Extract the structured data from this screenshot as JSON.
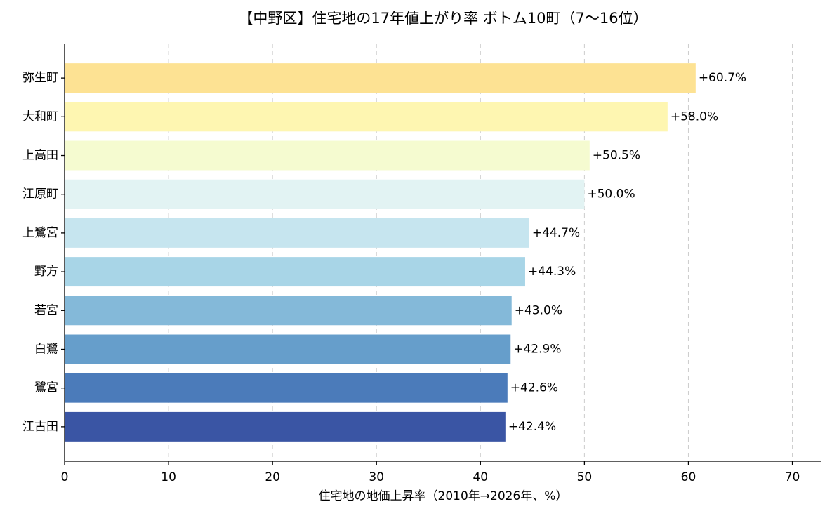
{
  "chart_data": {
    "type": "barh",
    "title": "【中野区】住宅地の17年値上がり率 ボトム10町（7〜16位）",
    "x_label": "住宅地の地価上昇率（2010年→2026年、%）",
    "categories": [
      "弥生町",
      "大和町",
      "上高田",
      "江原町",
      "上鷺宮",
      "野方",
      "若宮",
      "白鷺",
      "鷺宮",
      "江古田"
    ],
    "values": [
      60.7,
      58.0,
      50.5,
      50.0,
      44.7,
      44.3,
      43.0,
      42.9,
      42.6,
      42.4
    ],
    "value_labels": [
      "+60.7%",
      "+58.0%",
      "+50.5%",
      "+50.0%",
      "+44.7%",
      "+44.3%",
      "+43.0%",
      "+42.9%",
      "+42.6%",
      "+42.4%"
    ],
    "colors": [
      "#fde293",
      "#fef6b1",
      "#f5fbd0",
      "#e2f3f3",
      "#c6e5ef",
      "#a8d5e7",
      "#84b9d9",
      "#669ecb",
      "#4b7bba",
      "#3a55a4"
    ],
    "xlim": [
      0,
      72.8
    ],
    "xticks": [
      0,
      10,
      20,
      30,
      40,
      50,
      60,
      70
    ],
    "grid": true
  }
}
